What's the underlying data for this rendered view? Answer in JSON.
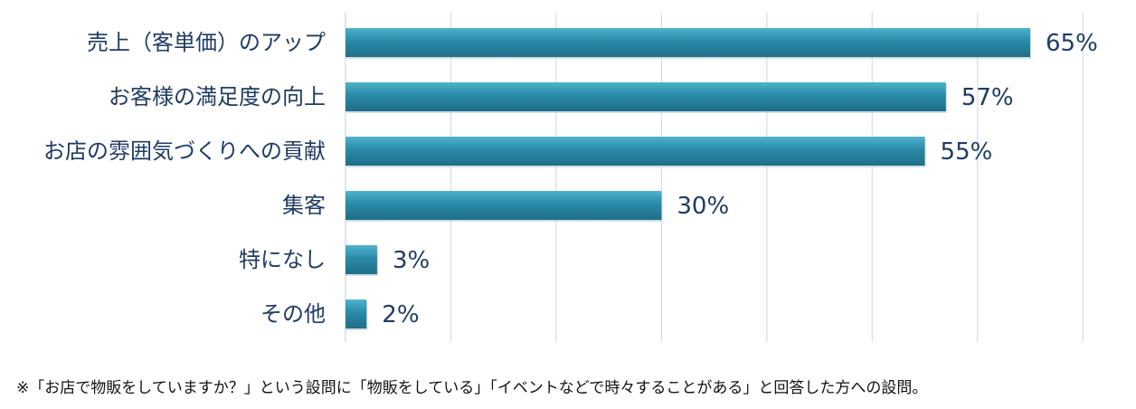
{
  "chart_data": {
    "type": "bar",
    "orientation": "horizontal",
    "categories": [
      "売上（客単価）のアップ",
      "お客様の満足度の向上",
      "お店の雰囲気づくりへの貢献",
      "集客",
      "特になし",
      "その他"
    ],
    "values": [
      65,
      57,
      55,
      30,
      3,
      2
    ],
    "value_labels": [
      "65%",
      "57%",
      "55%",
      "30%",
      "3%",
      "2%"
    ],
    "xlim": [
      0,
      70
    ],
    "grid": true,
    "bar_color": "#2a8aa8",
    "bar_color_light": "#4eb3cc",
    "bar_color_dark": "#1f6f88",
    "grid_color": "#d4dde8",
    "label_color": "#1f3b66"
  },
  "footnote": "※「お店で物販をしていますか？」という設問に「物販をしている」「イベントなどで時々することがある」と回答した方への設問。"
}
